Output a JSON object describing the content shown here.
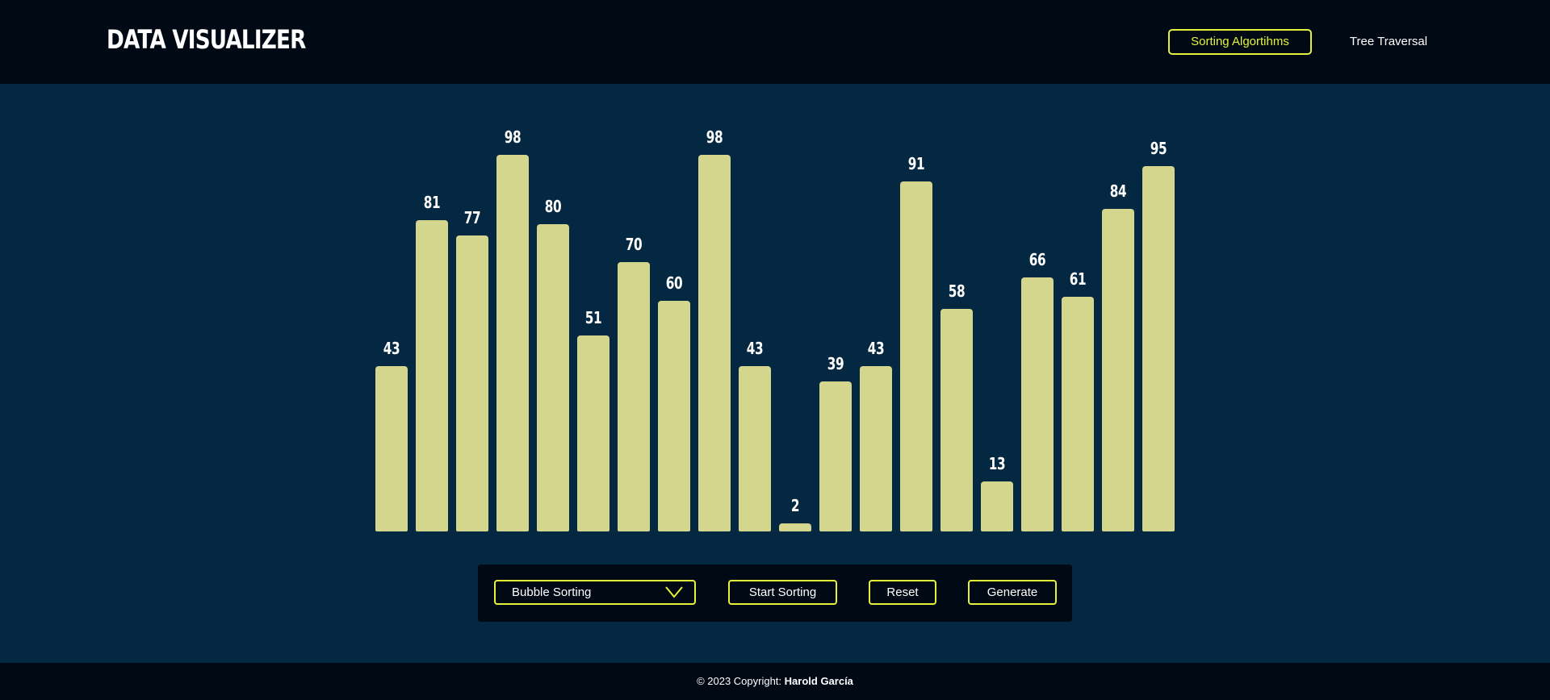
{
  "header": {
    "logo": "DATA VISUALIZER",
    "nav": [
      {
        "label": "Sorting Algortihms",
        "active": true
      },
      {
        "label": "Tree Traversal",
        "active": false
      }
    ]
  },
  "chart_data": {
    "type": "bar",
    "values": [
      43,
      81,
      77,
      98,
      80,
      51,
      70,
      60,
      98,
      43,
      2,
      39,
      43,
      91,
      58,
      13,
      66,
      61,
      84,
      95
    ],
    "ylim": [
      0,
      98
    ],
    "bar_color": "#d4d68d"
  },
  "controls": {
    "algorithm_select": "Bubble Sorting",
    "start_label": "Start Sorting",
    "reset_label": "Reset",
    "generate_label": "Generate"
  },
  "footer": {
    "prefix": "© 2023 Copyright: ",
    "author": "Harold García"
  },
  "colors": {
    "background": "#052842",
    "header": "#010915",
    "accent": "#e6f23a"
  }
}
